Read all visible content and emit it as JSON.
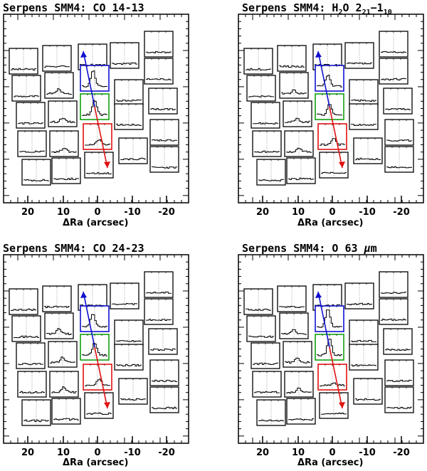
{
  "chart_data": [
    {
      "type": "spectral-map",
      "title": "Serpens SMM4: CO 14-13",
      "title_parts": {
        "main": "Serpens SMM4: CO 14-13"
      },
      "xlabel": "ΔRa (arcsec)",
      "x_ticks": [
        "20",
        "10",
        "0",
        "-10",
        "-20"
      ],
      "outflow_arrows": {
        "blue": "#1010d0",
        "red": "#e01010"
      },
      "highlight_colors": {
        "blue": "#1010d0",
        "green": "#10a010",
        "red": "#e01010"
      },
      "peak_strength": {
        "blue": 0.75,
        "green": 0.7,
        "red": 0.25,
        "side": 0.2
      }
    },
    {
      "type": "spectral-map",
      "title": "Serpens SMM4: H2O 221-110",
      "title_parts": {
        "pre": "Serpens SMM4: H",
        "sub1": "2",
        "mid": "O 2",
        "sub2": "21",
        "dash": "−1",
        "sub3": "10"
      },
      "xlabel": "ΔRa (arcsec)",
      "x_ticks": [
        "20",
        "10",
        "0",
        "-10",
        "-20"
      ],
      "outflow_arrows": {
        "blue": "#1010d0",
        "red": "#e01010"
      },
      "highlight_colors": {
        "blue": "#1010d0",
        "green": "#10a010",
        "red": "#e01010"
      },
      "peak_strength": {
        "blue": 0.55,
        "green": 0.5,
        "red": 0.3,
        "side": 0.15
      }
    },
    {
      "type": "spectral-map",
      "title": "Serpens SMM4: CO 24-23",
      "title_parts": {
        "main": "Serpens SMM4: CO 24-23"
      },
      "xlabel": "ΔRa (arcsec)",
      "x_ticks": [
        "20",
        "10",
        "0",
        "-10",
        "-20"
      ],
      "outflow_arrows": {
        "blue": "#1010d0",
        "red": "#e01010"
      },
      "highlight_colors": {
        "blue": "#1010d0",
        "green": "#10a010",
        "red": "#e01010"
      },
      "peak_strength": {
        "blue": 0.6,
        "green": 0.6,
        "red": 0.3,
        "side": 0.25
      }
    },
    {
      "type": "spectral-map",
      "title": "Serpens SMM4: O 63 μm",
      "title_parts": {
        "pre": "Serpens SMM4: O 63 ",
        "greek": "μ",
        "post": "m"
      },
      "xlabel": "ΔRa (arcsec)",
      "x_ticks": [
        "20",
        "10",
        "0",
        "-10",
        "-20"
      ],
      "outflow_arrows": {
        "blue": "#1010d0",
        "red": "#e01010"
      },
      "highlight_colors": {
        "blue": "#1010d0",
        "green": "#10a010",
        "red": "#e01010"
      },
      "peak_strength": {
        "blue": 0.85,
        "green": 0.8,
        "red": 0.1,
        "side": 0.2
      }
    }
  ]
}
